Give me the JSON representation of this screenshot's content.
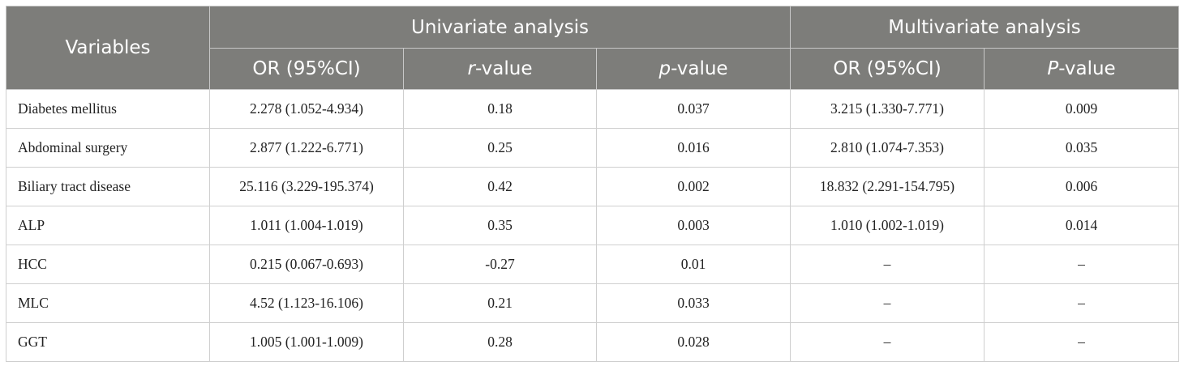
{
  "header": {
    "variables": "Variables",
    "univariate": "Univariate analysis",
    "multivariate": "Multivariate analysis",
    "uni_or": "OR (95%CI)",
    "uni_r_italic": "r",
    "uni_r_rest": "-value",
    "uni_p_italic": "p",
    "uni_p_rest": "-value",
    "multi_or": "OR (95%CI)",
    "multi_p_italic": "P",
    "multi_p_rest": "-value"
  },
  "rows": [
    {
      "variable": "Diabetes mellitus",
      "uni_or": "2.278 (1.052-4.934)",
      "r": "0.18",
      "p": "0.037",
      "multi_or": "3.215 (1.330-7.771)",
      "multi_p": "0.009"
    },
    {
      "variable": "Abdominal surgery",
      "uni_or": "2.877 (1.222-6.771)",
      "r": "0.25",
      "p": "0.016",
      "multi_or": "2.810 (1.074-7.353)",
      "multi_p": "0.035"
    },
    {
      "variable": "Biliary tract disease",
      "uni_or": "25.116 (3.229-195.374)",
      "r": "0.42",
      "p": "0.002",
      "multi_or": "18.832 (2.291-154.795)",
      "multi_p": "0.006"
    },
    {
      "variable": "ALP",
      "uni_or": "1.011 (1.004-1.019)",
      "r": "0.35",
      "p": "0.003",
      "multi_or": "1.010 (1.002-1.019)",
      "multi_p": "0.014"
    },
    {
      "variable": "HCC",
      "uni_or": "0.215 (0.067-0.693)",
      "r": "-0.27",
      "p": "0.01",
      "multi_or": "–",
      "multi_p": "–"
    },
    {
      "variable": "MLC",
      "uni_or": "4.52 (1.123-16.106)",
      "r": "0.21",
      "p": "0.033",
      "multi_or": "–",
      "multi_p": "–"
    },
    {
      "variable": "GGT",
      "uni_or": "1.005 (1.001-1.009)",
      "r": "0.28",
      "p": "0.028",
      "multi_or": "–",
      "multi_p": "–"
    }
  ]
}
